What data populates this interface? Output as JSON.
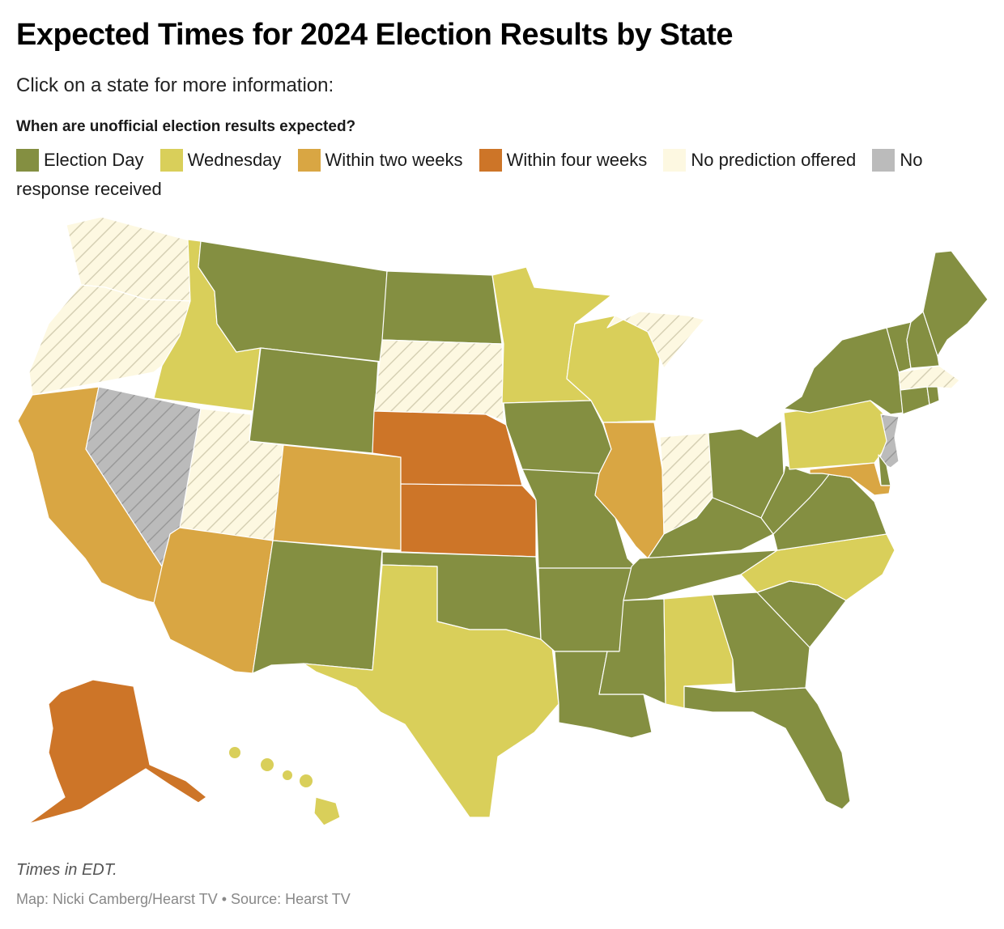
{
  "header": {
    "title": "Expected Times for 2024 Election Results by State",
    "subtitle": "Click on a state for more information:"
  },
  "legend": {
    "title": "When are unofficial election results expected?",
    "items": [
      {
        "key": "election_day",
        "label": "Election Day",
        "color": "#848f41"
      },
      {
        "key": "wednesday",
        "label": "Wednesday",
        "color": "#d9cf5a"
      },
      {
        "key": "two_weeks",
        "label": "Within two weeks",
        "color": "#d9a643"
      },
      {
        "key": "four_weeks",
        "label": "Within four weeks",
        "color": "#cd7528"
      },
      {
        "key": "no_prediction",
        "label": "No prediction offered",
        "color": "#fdf8e1"
      },
      {
        "key": "no_response",
        "label": "No response received",
        "color": "#bbbbbb"
      }
    ]
  },
  "states": {
    "WA": "no_prediction",
    "OR": "no_prediction",
    "CA": "two_weeks",
    "NV": "no_response",
    "ID": "wednesday",
    "MT": "election_day",
    "WY": "election_day",
    "UT": "no_prediction",
    "AZ": "two_weeks",
    "CO": "two_weeks",
    "NM": "election_day",
    "ND": "election_day",
    "SD": "no_prediction",
    "NE": "four_weeks",
    "KS": "four_weeks",
    "OK": "election_day",
    "TX": "wednesday",
    "MN": "wednesday",
    "IA": "election_day",
    "MO": "election_day",
    "AR": "election_day",
    "LA": "election_day",
    "WI": "wednesday",
    "IL": "two_weeks",
    "MI": "no_prediction",
    "IN": "no_prediction",
    "OH": "election_day",
    "KY": "election_day",
    "TN": "election_day",
    "MS": "election_day",
    "AL": "wednesday",
    "GA": "election_day",
    "FL": "election_day",
    "SC": "election_day",
    "NC": "wednesday",
    "VA": "election_day",
    "WV": "election_day",
    "PA": "wednesday",
    "NY": "election_day",
    "VT": "election_day",
    "NH": "election_day",
    "ME": "election_day",
    "MA": "no_prediction",
    "CT": "election_day",
    "RI": "election_day",
    "NJ": "no_response",
    "DE": "election_day",
    "MD": "two_weeks",
    "AK": "four_weeks",
    "HI": "wednesday"
  },
  "footer": {
    "note": "Times in EDT.",
    "credit": "Map: Nicki Camberg/Hearst TV • Source: Hearst TV"
  }
}
